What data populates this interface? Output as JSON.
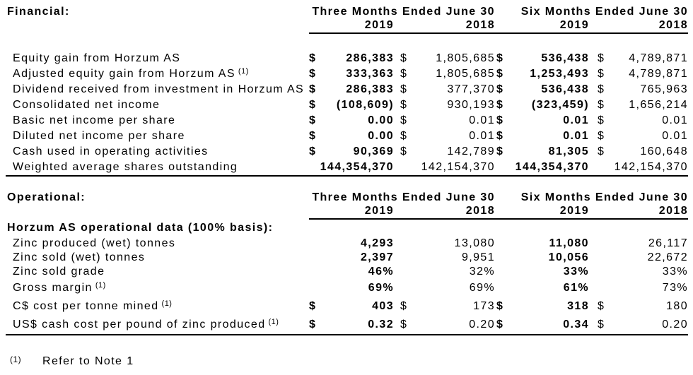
{
  "document": {
    "dollar_sign": "$",
    "footnote": {
      "marker": "(1)",
      "text": "Refer to Note 1"
    }
  },
  "sections": [
    {
      "id": "financial",
      "label": "Financial:",
      "periods": [
        "Three Months Ended June 30",
        "Six Months Ended June 30"
      ],
      "years": [
        "2019",
        "2018",
        "2019",
        "2018"
      ],
      "subheader": "",
      "rows": [
        {
          "label": "Equity gain from Horzum AS",
          "sup": "",
          "dollar": true,
          "values": [
            "286,383",
            "1,805,685",
            "536,438",
            "4,789,871"
          ]
        },
        {
          "label": "Adjusted equity gain from Horzum AS",
          "sup": "(1)",
          "dollar": true,
          "values": [
            "333,363",
            "1,805,685",
            "1,253,493",
            "4,789,871"
          ]
        },
        {
          "label": "Dividend received from investment in Horzum AS",
          "sup": "",
          "dollar": true,
          "values": [
            "286,383",
            "377,370",
            "536,438",
            "765,963"
          ]
        },
        {
          "label": "Consolidated net income",
          "sup": "",
          "dollar": true,
          "values": [
            "(108,609)",
            "930,193",
            "(323,459)",
            "1,656,214"
          ]
        },
        {
          "label": "Basic net income per share",
          "sup": "",
          "dollar": true,
          "values": [
            "0.00",
            "0.01",
            "0.01",
            "0.01"
          ]
        },
        {
          "label": "Diluted net income per share",
          "sup": "",
          "dollar": true,
          "values": [
            "0.00",
            "0.01",
            "0.01",
            "0.01"
          ]
        },
        {
          "label": "Cash used in operating activities",
          "sup": "",
          "dollar": true,
          "values": [
            "90,369",
            "142,789",
            "81,305",
            "160,648"
          ]
        },
        {
          "label": "Weighted average shares outstanding",
          "sup": "",
          "dollar": false,
          "values": [
            "144,354,370",
            "142,154,370",
            "144,354,370",
            "142,154,370"
          ]
        }
      ]
    },
    {
      "id": "operational",
      "label": "Operational:",
      "periods": [
        "Three Months Ended June 30",
        "Six Months Ended June 30"
      ],
      "years": [
        "2019",
        "2018",
        "2019",
        "2018"
      ],
      "subheader": "Horzum AS operational data (100% basis):",
      "rows": [
        {
          "label": "Zinc produced (wet) tonnes",
          "sup": "",
          "dollar": false,
          "values": [
            "4,293",
            "13,080",
            "11,080",
            "26,117"
          ]
        },
        {
          "label": "Zinc sold (wet) tonnes",
          "sup": "",
          "dollar": false,
          "values": [
            "2,397",
            "9,951",
            "10,056",
            "22,672"
          ]
        },
        {
          "label": "Zinc sold grade",
          "sup": "",
          "dollar": false,
          "values": [
            "46%",
            "32%",
            "33%",
            "33%"
          ]
        },
        {
          "label": "Gross margin",
          "sup": "(1)",
          "dollar": false,
          "values": [
            "69%",
            "69%",
            "61%",
            "73%"
          ]
        },
        {
          "label": "C$ cost per tonne mined",
          "sup": "(1)",
          "dollar": true,
          "values": [
            "403",
            "173",
            "318",
            "180"
          ]
        },
        {
          "label": "US$ cash cost per pound of zinc produced",
          "sup": "(1)",
          "dollar": true,
          "values": [
            "0.32",
            "0.20",
            "0.34",
            "0.20"
          ]
        }
      ]
    }
  ]
}
